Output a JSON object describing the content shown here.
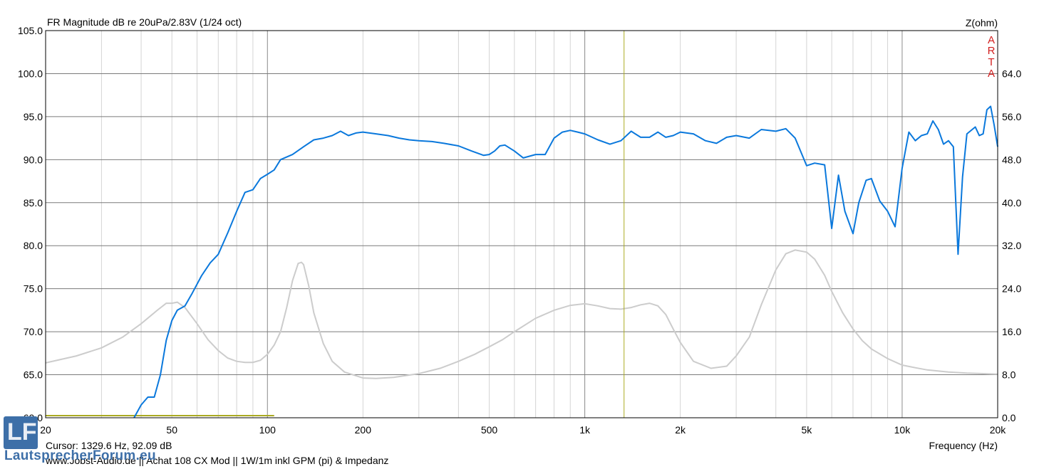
{
  "chart_data": {
    "type": "line",
    "title": "FR Magnitude dB re 20uPa/2.83V (1/24 oct)",
    "xlabel": "Frequency (Hz)",
    "ylabel_right": "Z(ohm)",
    "watermark_letters": [
      "A",
      "R",
      "T",
      "A"
    ],
    "x_scale": "log",
    "xlim": [
      20,
      20000
    ],
    "ylim": [
      60,
      105
    ],
    "ylim_right": [
      0,
      72
    ],
    "x_ticks": [
      20,
      50,
      100,
      200,
      500,
      1000,
      2000,
      5000,
      10000,
      20000
    ],
    "x_tick_labels": [
      "20",
      "50",
      "100",
      "200",
      "500",
      "1k",
      "2k",
      "5k",
      "10k",
      "20k"
    ],
    "y_ticks": [
      60,
      65,
      70,
      75,
      80,
      85,
      90,
      95,
      100,
      105
    ],
    "y_tick_labels": [
      "60.0",
      "65.0",
      "70.0",
      "75.0",
      "80.0",
      "85.0",
      "90.0",
      "95.0",
      "100.0",
      "105.0"
    ],
    "y_ticks_right": [
      0,
      8,
      16,
      24,
      32,
      40,
      48,
      56,
      64
    ],
    "y_tick_labels_right": [
      "0.0",
      "8.0",
      "16.0",
      "24.0",
      "32.0",
      "40.0",
      "48.0",
      "56.0",
      "64.0"
    ],
    "grid": true,
    "cursor": {
      "x": 1329.6,
      "y": 92.09,
      "text": "Cursor: 1329.6 Hz, 92.09 dB"
    },
    "footer_text": "www.Jobst-Audio.de  ||  Achat  108 CX Mod  ||  1W/1m  inkl GPM (pi) & Impedanz",
    "colors": {
      "fr": "#0a78dc",
      "impedance": "#cccccc",
      "cursor": "#aaaa22",
      "grid": "#d4d4d4",
      "major_grid": "#8a8a8a"
    },
    "series": [
      {
        "axis": "left",
        "x": [
          38,
          40,
          42,
          44,
          46,
          48,
          50,
          52,
          55,
          58,
          62,
          66,
          70,
          75,
          80,
          85,
          90,
          95,
          100,
          105,
          110,
          120,
          130,
          140,
          150,
          160,
          170,
          180,
          190,
          200,
          220,
          240,
          260,
          280,
          300,
          330,
          360,
          400,
          440,
          480,
          500,
          520,
          540,
          560,
          600,
          640,
          700,
          750,
          800,
          850,
          900,
          950,
          1000,
          1100,
          1200,
          1300,
          1400,
          1500,
          1600,
          1700,
          1800,
          1900,
          2000,
          2200,
          2400,
          2600,
          2800,
          3000,
          3300,
          3600,
          4000,
          4300,
          4600,
          5000,
          5300,
          5700,
          6000,
          6300,
          6600,
          7000,
          7300,
          7700,
          8000,
          8500,
          9000,
          9500,
          10000,
          10500,
          11000,
          11500,
          12000,
          12500,
          13000,
          13500,
          14000,
          14500,
          15000,
          15500,
          16000,
          17000,
          17500,
          18000,
          18500,
          19000,
          19500,
          20000
        ],
        "y": [
          60.0,
          61.5,
          62.4,
          62.4,
          65.0,
          69.0,
          71.3,
          72.5,
          73.0,
          74.5,
          76.5,
          78.0,
          79.0,
          81.5,
          84.0,
          86.2,
          86.5,
          87.8,
          88.3,
          88.8,
          90.0,
          90.6,
          91.5,
          92.3,
          92.5,
          92.8,
          93.3,
          92.8,
          93.1,
          93.2,
          93.0,
          92.8,
          92.5,
          92.3,
          92.2,
          92.1,
          91.9,
          91.6,
          91.0,
          90.5,
          90.6,
          91.0,
          91.6,
          91.7,
          91.0,
          90.2,
          90.6,
          90.6,
          92.5,
          93.2,
          93.4,
          93.2,
          93.0,
          92.3,
          91.8,
          92.2,
          93.3,
          92.6,
          92.6,
          93.2,
          92.6,
          92.8,
          93.2,
          93.0,
          92.2,
          91.9,
          92.6,
          92.8,
          92.5,
          93.5,
          93.3,
          93.6,
          92.5,
          89.3,
          89.6,
          89.4,
          82.0,
          88.2,
          84.0,
          81.4,
          85.0,
          87.6,
          87.8,
          85.2,
          84.0,
          82.2,
          89.0,
          93.2,
          92.2,
          92.8,
          93.0,
          94.5,
          93.5,
          91.8,
          92.2,
          91.5,
          79.0,
          88.0,
          93.0,
          93.8,
          92.8,
          93.0,
          95.8,
          96.2,
          94.0,
          91.5
        ]
      },
      {
        "axis": "right",
        "x": [
          20,
          25,
          30,
          35,
          40,
          45,
          48,
          50,
          52,
          55,
          60,
          65,
          70,
          75,
          80,
          85,
          90,
          95,
          100,
          105,
          110,
          115,
          120,
          125,
          128,
          130,
          135,
          140,
          150,
          160,
          175,
          200,
          220,
          250,
          300,
          350,
          400,
          450,
          500,
          550,
          600,
          700,
          800,
          900,
          1000,
          1100,
          1200,
          1300,
          1400,
          1500,
          1600,
          1700,
          1800,
          1900,
          2000,
          2200,
          2500,
          2800,
          3000,
          3300,
          3600,
          4000,
          4300,
          4600,
          5000,
          5300,
          5700,
          6000,
          6500,
          7000,
          7500,
          8000,
          9000,
          10000,
          11000,
          12000,
          14000,
          16000,
          18000,
          20000
        ],
        "y": [
          10.2,
          11.5,
          13.0,
          15.0,
          17.5,
          20.0,
          21.3,
          21.3,
          21.5,
          20.5,
          17.5,
          14.5,
          12.5,
          11.1,
          10.5,
          10.3,
          10.3,
          10.7,
          11.8,
          13.5,
          16.0,
          20.5,
          25.5,
          28.7,
          28.9,
          28.5,
          24.5,
          19.5,
          13.8,
          10.5,
          8.5,
          7.4,
          7.3,
          7.5,
          8.2,
          9.2,
          10.5,
          11.8,
          13.2,
          14.5,
          16.0,
          18.5,
          20.0,
          20.9,
          21.2,
          20.8,
          20.3,
          20.2,
          20.5,
          21.0,
          21.3,
          20.8,
          19.2,
          16.5,
          14.0,
          10.5,
          9.2,
          9.6,
          11.5,
          15.0,
          21.0,
          27.5,
          30.5,
          31.2,
          30.8,
          29.5,
          26.5,
          23.5,
          19.5,
          16.5,
          14.3,
          12.8,
          11.0,
          9.8,
          9.3,
          8.9,
          8.5,
          8.3,
          8.2,
          8.1
        ]
      }
    ]
  }
}
